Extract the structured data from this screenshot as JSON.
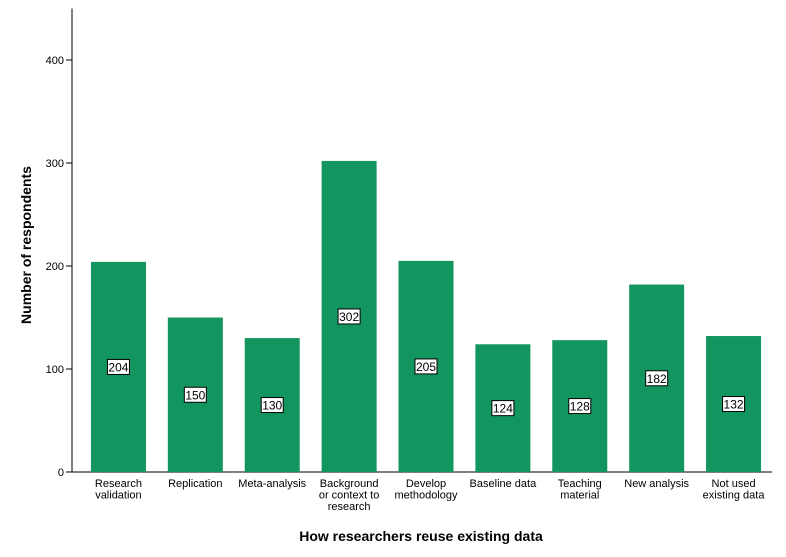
{
  "chart_data": {
    "type": "bar",
    "title": "",
    "xlabel": "How researchers reuse existing data",
    "ylabel": "Number of respondents",
    "ylim": [
      0,
      450
    ],
    "yticks": [
      0,
      100,
      200,
      300,
      400
    ],
    "grid": false,
    "categories": [
      [
        "Research",
        "validation"
      ],
      [
        "Replication"
      ],
      [
        "Meta-analysis"
      ],
      [
        "Background",
        "or context to",
        "research"
      ],
      [
        "Develop",
        "methodology"
      ],
      [
        "Baseline data"
      ],
      [
        "Teaching",
        "material"
      ],
      [
        "New analysis"
      ],
      [
        "Not used",
        "existing data"
      ]
    ],
    "values": [
      204,
      150,
      130,
      302,
      205,
      124,
      128,
      182,
      132
    ],
    "data_labels": [
      "204",
      "150",
      "130",
      "302",
      "205",
      "124",
      "128",
      "182",
      "132"
    ],
    "bar_color": "#13955f"
  }
}
